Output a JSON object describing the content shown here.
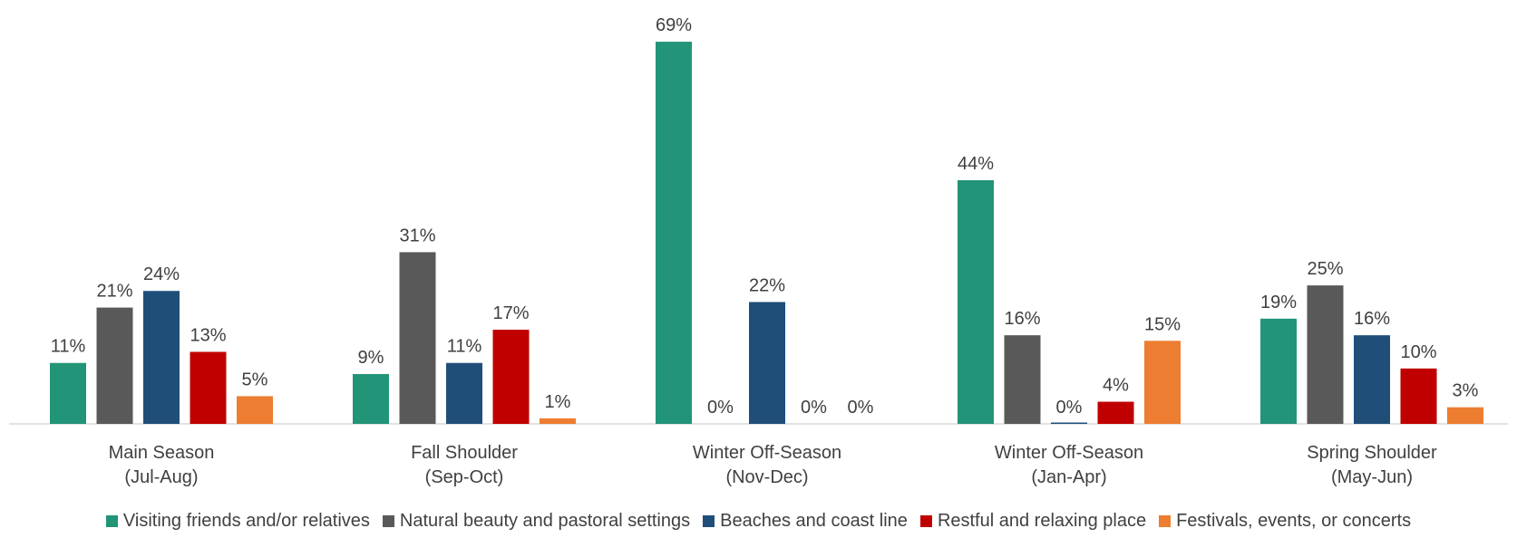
{
  "chart_data": {
    "type": "bar",
    "categories": [
      [
        "Main Season",
        "(Jul-Aug)"
      ],
      [
        "Fall Shoulder",
        "(Sep-Oct)"
      ],
      [
        "Winter Off-Season",
        "(Nov-Dec)"
      ],
      [
        "Winter Off-Season",
        "(Jan-Apr)"
      ],
      [
        "Spring Shoulder",
        "(May-Jun)"
      ]
    ],
    "series": [
      {
        "name": "Visiting friends and/or relatives",
        "color": "#229478",
        "values": [
          11,
          9,
          69,
          44,
          19
        ]
      },
      {
        "name": "Natural beauty and pastoral settings",
        "color": "#595959",
        "values": [
          21,
          31,
          0,
          16,
          25
        ]
      },
      {
        "name": "Beaches and coast line",
        "color": "#1F4E79",
        "values": [
          24,
          11,
          22,
          0,
          16
        ]
      },
      {
        "name": "Restful and relaxing place",
        "color": "#C00000",
        "values": [
          13,
          17,
          0,
          4,
          10
        ]
      },
      {
        "name": "Festivals, events, or concerts",
        "color": "#ED7D31",
        "values": [
          5,
          1,
          0,
          15,
          3
        ]
      }
    ],
    "value_suffix": "%",
    "ylim": [
      0,
      70
    ],
    "grid": false,
    "legend_position": "bottom"
  }
}
